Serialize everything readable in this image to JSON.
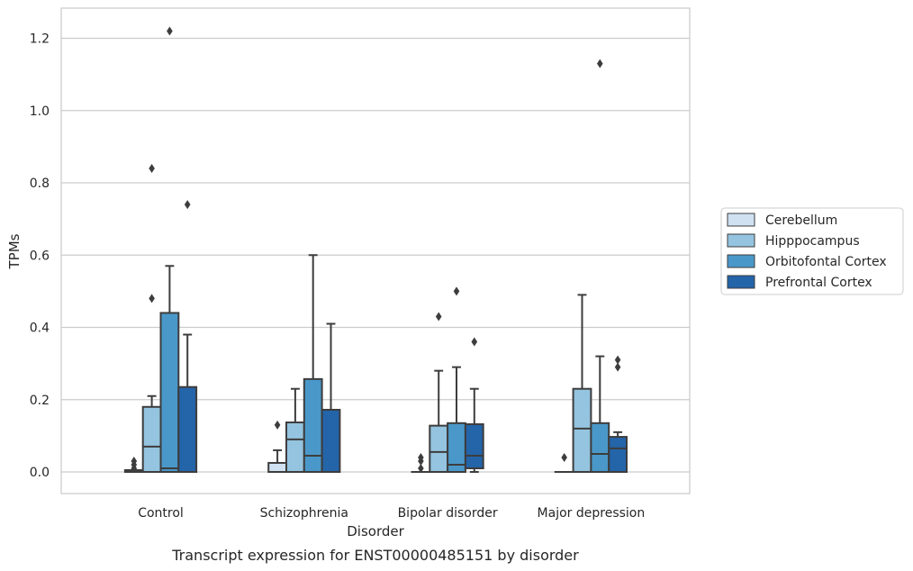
{
  "caption": "Transcript expression for ENST00000485151 by disorder",
  "chart_data": {
    "type": "box",
    "xlabel": "Disorder",
    "ylabel": "TPMs",
    "ylim": [
      -0.06,
      1.28
    ],
    "yticks": [
      0.0,
      0.2,
      0.4,
      0.6,
      0.8,
      1.0,
      1.2
    ],
    "ytick_labels": [
      "0.0",
      "0.2",
      "0.4",
      "0.6",
      "0.8",
      "1.0",
      "1.2"
    ],
    "categories": [
      "Control",
      "Schizophrenia",
      "Bipolar disorder",
      "Major depression"
    ],
    "grid": "horizontal",
    "legend_position": "right",
    "series": [
      {
        "name": "Cerebellum",
        "color": "#d0e1f2",
        "boxes": [
          {
            "whislo": 0.0,
            "q1": 0.0,
            "med": 0.002,
            "q3": 0.005,
            "whishi": 0.005,
            "fliers": [
              0.01,
              0.02,
              0.03
            ]
          },
          {
            "whislo": 0.0,
            "q1": 0.0,
            "med": 0.0,
            "q3": 0.025,
            "whishi": 0.06,
            "fliers": [
              0.13
            ]
          },
          {
            "whislo": 0.0,
            "q1": 0.0,
            "med": 0.0,
            "q3": 0.0,
            "whishi": 0.0,
            "fliers": [
              0.01,
              0.03,
              0.04
            ]
          },
          {
            "whislo": 0.0,
            "q1": 0.0,
            "med": 0.0,
            "q3": 0.0,
            "whishi": 0.0,
            "fliers": [
              0.04
            ]
          }
        ]
      },
      {
        "name": "Hipppocampus",
        "color": "#94c4df",
        "boxes": [
          {
            "whislo": 0.0,
            "q1": 0.0,
            "med": 0.07,
            "q3": 0.18,
            "whishi": 0.21,
            "fliers": [
              0.48,
              0.84
            ]
          },
          {
            "whislo": 0.0,
            "q1": 0.0,
            "med": 0.09,
            "q3": 0.137,
            "whishi": 0.23,
            "fliers": []
          },
          {
            "whislo": 0.0,
            "q1": 0.0,
            "med": 0.055,
            "q3": 0.128,
            "whishi": 0.28,
            "fliers": [
              0.43
            ]
          },
          {
            "whislo": 0.0,
            "q1": 0.0,
            "med": 0.12,
            "q3": 0.23,
            "whishi": 0.49,
            "fliers": []
          }
        ]
      },
      {
        "name": "Orbitofontal Cortex",
        "color": "#4a98c9",
        "boxes": [
          {
            "whislo": 0.0,
            "q1": 0.0,
            "med": 0.01,
            "q3": 0.44,
            "whishi": 0.57,
            "fliers": [
              1.22
            ]
          },
          {
            "whislo": 0.0,
            "q1": 0.0,
            "med": 0.045,
            "q3": 0.257,
            "whishi": 0.6,
            "fliers": []
          },
          {
            "whislo": 0.0,
            "q1": 0.0,
            "med": 0.02,
            "q3": 0.135,
            "whishi": 0.29,
            "fliers": [
              0.5
            ]
          },
          {
            "whislo": 0.0,
            "q1": 0.0,
            "med": 0.05,
            "q3": 0.135,
            "whishi": 0.32,
            "fliers": [
              1.13
            ]
          }
        ]
      },
      {
        "name": "Prefrontal Cortex",
        "color": "#2464a9",
        "boxes": [
          {
            "whislo": 0.0,
            "q1": 0.0,
            "med": 0.0,
            "q3": 0.235,
            "whishi": 0.38,
            "fliers": [
              0.74
            ]
          },
          {
            "whislo": 0.0,
            "q1": 0.0,
            "med": 0.0,
            "q3": 0.172,
            "whishi": 0.41,
            "fliers": []
          },
          {
            "whislo": 0.0,
            "q1": 0.01,
            "med": 0.045,
            "q3": 0.132,
            "whishi": 0.23,
            "fliers": [
              0.36
            ]
          },
          {
            "whislo": 0.0,
            "q1": 0.0,
            "med": 0.065,
            "q3": 0.097,
            "whishi": 0.11,
            "fliers": [
              0.29,
              0.31
            ]
          }
        ]
      }
    ]
  }
}
